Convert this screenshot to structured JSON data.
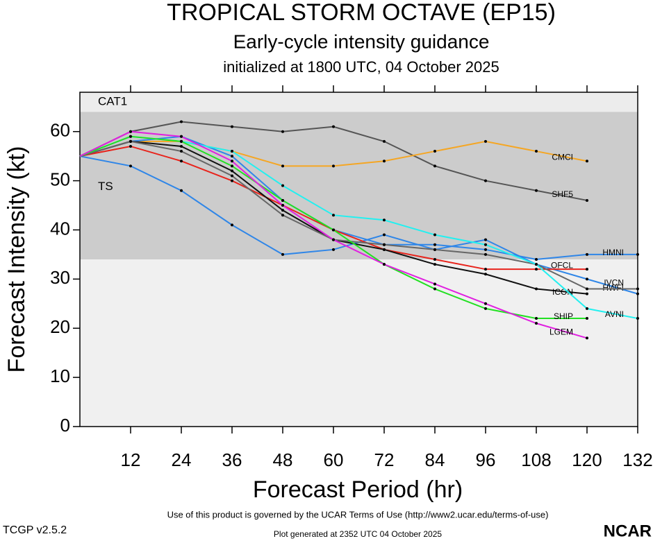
{
  "chart_data": {
    "type": "line",
    "title": "TROPICAL STORM OCTAVE (EP15)",
    "subtitle": "Early-cycle intensity guidance",
    "initialized": "initialized at 1800 UTC, 04 October 2025",
    "x_label": "Forecast Period (hr)",
    "y_label": "Forecast Intensity (kt)",
    "x": [
      0,
      12,
      24,
      36,
      48,
      60,
      72,
      84,
      96,
      108,
      120,
      132
    ],
    "xlim": [
      0,
      132
    ],
    "xticks": [
      12,
      24,
      36,
      48,
      60,
      72,
      84,
      96,
      108,
      120,
      132
    ],
    "ylim": [
      0,
      68
    ],
    "yticks": [
      0,
      10,
      20,
      30,
      40,
      50,
      60
    ],
    "bands": [
      {
        "label": "CAT1",
        "range": [
          64,
          68
        ],
        "color": "#ececec"
      },
      {
        "label": "TS",
        "range": [
          34,
          64
        ],
        "color": "#cccccc"
      }
    ],
    "series": [
      {
        "name": "SHF5",
        "color": "#555555",
        "values": [
          55,
          60,
          62,
          61,
          60,
          61,
          58,
          53,
          50,
          48,
          46,
          null
        ]
      },
      {
        "name": "CMCI",
        "color": "#f5a623",
        "values": [
          55,
          58,
          58,
          56,
          53,
          53,
          54,
          56,
          58,
          56,
          54,
          null
        ]
      },
      {
        "name": "HMNI",
        "color": "#2f86e8",
        "values": [
          55,
          58,
          59,
          55,
          46,
          40,
          37,
          37,
          36,
          34,
          35,
          35
        ]
      },
      {
        "name": "HWFI",
        "color": "#2f86e8",
        "values": [
          55,
          53,
          48,
          41,
          35,
          36,
          39,
          36,
          38,
          33,
          30,
          27
        ]
      },
      {
        "name": "OFCL",
        "color": "#e8231b",
        "values": [
          55,
          57,
          54,
          50,
          45,
          40,
          36,
          34,
          32,
          32,
          32,
          null
        ]
      },
      {
        "name": "ICON",
        "color": "#111111",
        "values": [
          55,
          58,
          57,
          52,
          44,
          38,
          36,
          33,
          31,
          28,
          27,
          null
        ]
      },
      {
        "name": "IVCN",
        "color": "#666666",
        "values": [
          55,
          58,
          56,
          51,
          43,
          38,
          37,
          36,
          35,
          33,
          28,
          28
        ]
      },
      {
        "name": "AVNI",
        "color": "#22f0f0",
        "values": [
          55,
          59,
          58,
          56,
          49,
          43,
          42,
          39,
          37,
          33,
          24,
          22
        ]
      },
      {
        "name": "SHIP",
        "color": "#22e022",
        "values": [
          55,
          59,
          58,
          53,
          46,
          40,
          33,
          28,
          24,
          22,
          22,
          null
        ]
      },
      {
        "name": "LGEM",
        "color": "#e020e0",
        "values": [
          55,
          60,
          59,
          54,
          45,
          38,
          33,
          29,
          25,
          21,
          18,
          null
        ]
      }
    ],
    "terms": "Use of this product is governed by the UCAR Terms of Use (http://www2.ucar.edu/terms-of-use)",
    "version": "TCGP v2.5.2",
    "generated": "Plot generated at 2352 UTC   04 October 2025",
    "logo": "NCAR"
  }
}
